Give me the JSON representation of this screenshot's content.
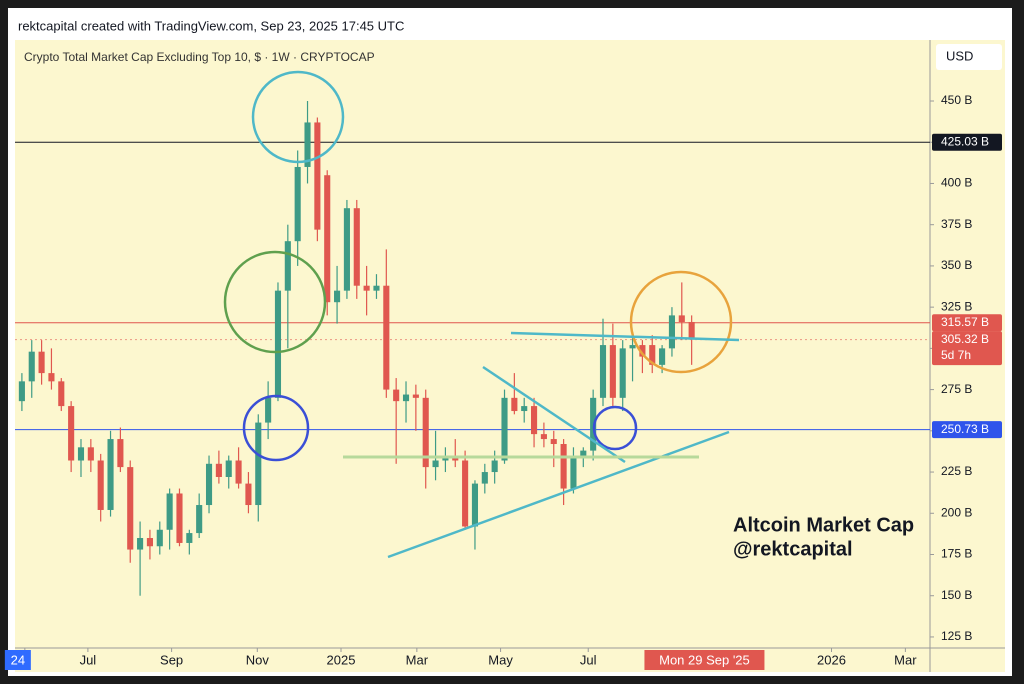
{
  "header": "rektcapital created with TradingView.com, Sep 23, 2025 17:45 UTC",
  "chart_data": {
    "type": "candlestick",
    "title": "Crypto Total Market Cap Excluding Top 10, $ · 1W · CRYPTOCAP",
    "currency": "USD",
    "annotation": [
      "Altcoin Market Cap",
      "@rektcapital"
    ],
    "up_color": "#3e9b86",
    "down_color": "#e0574f",
    "x": [
      0,
      1,
      2,
      3,
      4,
      5,
      6,
      7,
      8,
      9,
      10,
      11,
      12,
      13,
      14,
      15,
      16,
      17,
      18,
      19,
      20,
      21,
      22,
      23,
      24,
      25,
      26,
      27,
      28,
      29,
      30,
      31,
      32,
      33,
      34,
      35,
      36,
      37,
      38,
      39,
      40,
      41,
      42,
      43,
      44,
      45,
      46,
      47,
      48,
      49,
      50,
      51,
      52,
      53,
      54,
      55,
      56,
      57,
      58,
      59,
      60,
      61,
      62,
      63,
      64,
      65,
      66,
      67,
      68
    ],
    "open": [
      268,
      280,
      298,
      285,
      280,
      265,
      232,
      240,
      232,
      202,
      245,
      228,
      178,
      185,
      180,
      190,
      212,
      182,
      188,
      205,
      230,
      222,
      232,
      218,
      205,
      255,
      270,
      335,
      365,
      410,
      437,
      405,
      328,
      335,
      385,
      338,
      335,
      338,
      275,
      268,
      272,
      270,
      228,
      232,
      235,
      232,
      192,
      218,
      225,
      232,
      270,
      262,
      265,
      248,
      245,
      242,
      215,
      235,
      238,
      270,
      302,
      270,
      300,
      302,
      302,
      290,
      300,
      320,
      316
    ],
    "high": [
      285,
      305,
      305,
      300,
      282,
      268,
      245,
      245,
      236,
      250,
      252,
      232,
      195,
      190,
      195,
      215,
      215,
      190,
      212,
      235,
      238,
      235,
      240,
      225,
      260,
      280,
      340,
      375,
      420,
      450,
      440,
      408,
      350,
      390,
      390,
      350,
      345,
      360,
      282,
      280,
      278,
      275,
      250,
      240,
      245,
      238,
      220,
      230,
      238,
      275,
      285,
      270,
      270,
      255,
      250,
      245,
      240,
      240,
      275,
      318,
      315,
      305,
      310,
      305,
      308,
      302,
      325,
      340,
      320
    ],
    "low": [
      262,
      270,
      278,
      275,
      262,
      225,
      222,
      225,
      195,
      198,
      225,
      170,
      150,
      172,
      175,
      178,
      180,
      175,
      185,
      200,
      218,
      215,
      215,
      200,
      195,
      245,
      268,
      300,
      350,
      400,
      365,
      320,
      315,
      330,
      330,
      320,
      330,
      270,
      230,
      255,
      250,
      215,
      220,
      225,
      228,
      190,
      178,
      212,
      218,
      230,
      260,
      255,
      240,
      240,
      228,
      205,
      212,
      228,
      232,
      265,
      265,
      262,
      280,
      285,
      285,
      285,
      295,
      305,
      290
    ],
    "close": [
      280,
      298,
      285,
      280,
      265,
      232,
      240,
      232,
      202,
      245,
      228,
      178,
      185,
      180,
      190,
      212,
      182,
      188,
      205,
      230,
      222,
      232,
      218,
      205,
      255,
      270,
      335,
      365,
      410,
      437,
      372,
      328,
      335,
      385,
      338,
      335,
      338,
      275,
      268,
      272,
      270,
      228,
      232,
      235,
      232,
      192,
      218,
      225,
      232,
      270,
      262,
      265,
      248,
      245,
      242,
      215,
      235,
      238,
      270,
      302,
      270,
      300,
      302,
      295,
      290,
      300,
      320,
      316,
      305.32
    ],
    "xlim": [
      -0.7,
      92.2
    ],
    "xticks": [
      {
        "value": 0.3,
        "label": "24"
      },
      {
        "value": 6.7,
        "label": "Jul"
      },
      {
        "value": 15.2,
        "label": "Sep"
      },
      {
        "value": 23.9,
        "label": "Nov"
      },
      {
        "value": 32.4,
        "label": "2025"
      },
      {
        "value": 40.1,
        "label": "Mar"
      },
      {
        "value": 48.6,
        "label": "May"
      },
      {
        "value": 57.5,
        "label": "Jul"
      },
      {
        "value": 82.2,
        "label": "2026"
      },
      {
        "value": 89.7,
        "label": "Mar"
      }
    ],
    "ylim": [
      118.3,
      487
    ],
    "yticks": [
      {
        "value": 125,
        "label": "125 B"
      },
      {
        "value": 150,
        "label": "150 B"
      },
      {
        "value": 175,
        "label": "175 B"
      },
      {
        "value": 200,
        "label": "200 B"
      },
      {
        "value": 225,
        "label": "225 B"
      },
      {
        "value": 250,
        "label": "250 B"
      },
      {
        "value": 275,
        "label": "275 B"
      },
      {
        "value": 300,
        "label": "300 B"
      },
      {
        "value": 325,
        "label": "325 B"
      },
      {
        "value": 350,
        "label": "350 B"
      },
      {
        "value": 375,
        "label": "375 B"
      },
      {
        "value": 400,
        "label": "400 B"
      },
      {
        "value": 425,
        "label": "425 B"
      },
      {
        "value": 450,
        "label": "450 B"
      }
    ],
    "price_lines": [
      {
        "value": 425.03,
        "label": "425.03 B",
        "color": "#131722"
      },
      {
        "value": 315.57,
        "label": "315.57 B",
        "color": "#e0574f"
      },
      {
        "value": 305.32,
        "label": "305.32 B",
        "countdown": "5d 7h",
        "color": "#e0574f"
      },
      {
        "value": 250.73,
        "label": "250.73 B",
        "color": "#2f54eb"
      }
    ],
    "cursor_label": {
      "value": 69.3,
      "label": "Mon 29 Sep '25"
    }
  }
}
